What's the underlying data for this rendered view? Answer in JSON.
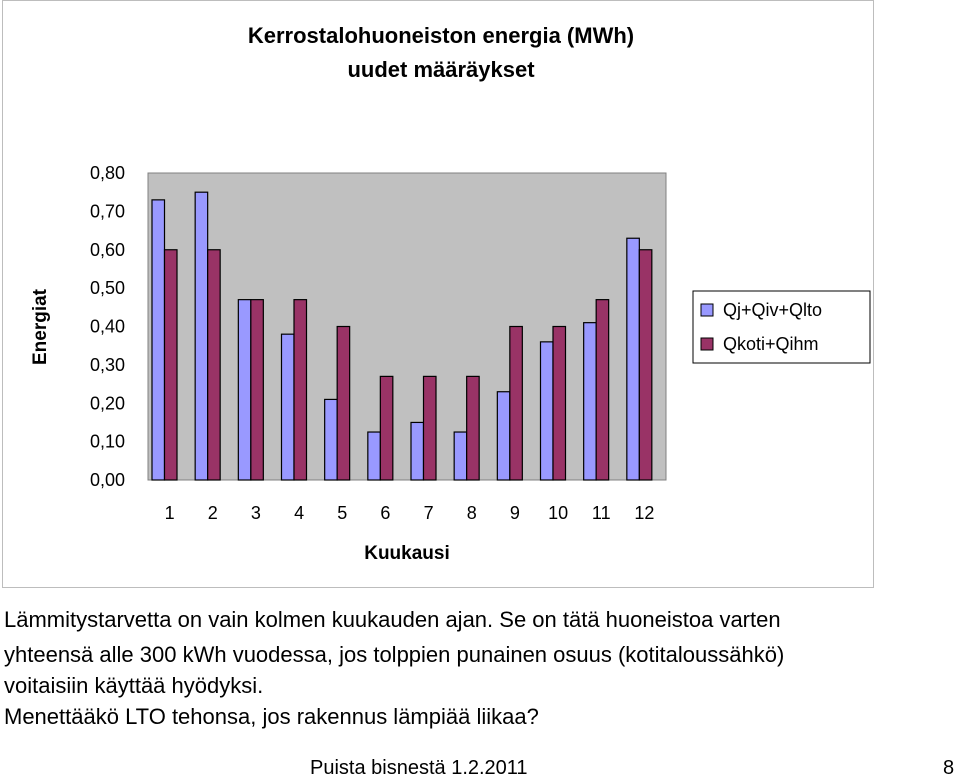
{
  "chart_data": {
    "type": "bar",
    "title_lines": [
      "Kerrostalohuoneiston energia (MWh)",
      "uudet määräykset"
    ],
    "xlabel": "Kuukausi",
    "ylabel": "Energiat",
    "ylim": [
      0,
      0.8
    ],
    "yticks": [
      "0,00",
      "0,10",
      "0,20",
      "0,30",
      "0,40",
      "0,50",
      "0,60",
      "0,70",
      "0,80"
    ],
    "categories": [
      "1",
      "2",
      "3",
      "4",
      "5",
      "6",
      "7",
      "8",
      "9",
      "10",
      "11",
      "12"
    ],
    "series": [
      {
        "name": "Qj+Qiv+Qlto",
        "color": "#9999ff",
        "values": [
          0.73,
          0.75,
          0.47,
          0.38,
          0.21,
          0.125,
          0.15,
          0.125,
          0.23,
          0.36,
          0.41,
          0.63
        ]
      },
      {
        "name": "Qkoti+Qihm",
        "color": "#993366",
        "values": [
          0.6,
          0.6,
          0.47,
          0.47,
          0.4,
          0.27,
          0.27,
          0.27,
          0.4,
          0.4,
          0.47,
          0.6
        ]
      }
    ],
    "grid": false,
    "legend_position": "right"
  },
  "body_text": {
    "line1": "Lämmitystarvetta on vain kolmen kuukauden ajan. Se on tätä huoneistoa varten",
    "line2": "yhteensä alle 300 kWh vuodessa, jos tolppien punainen osuus (kotitaloussähkö)",
    "line3": "voitaisiin käyttää hyödyksi.",
    "line4": "Menettääkö LTO tehonsa, jos rakennus lämpiää liikaa?"
  },
  "footer": {
    "center": "Puista bisnestä 1.2.2011",
    "page_number": "8"
  }
}
